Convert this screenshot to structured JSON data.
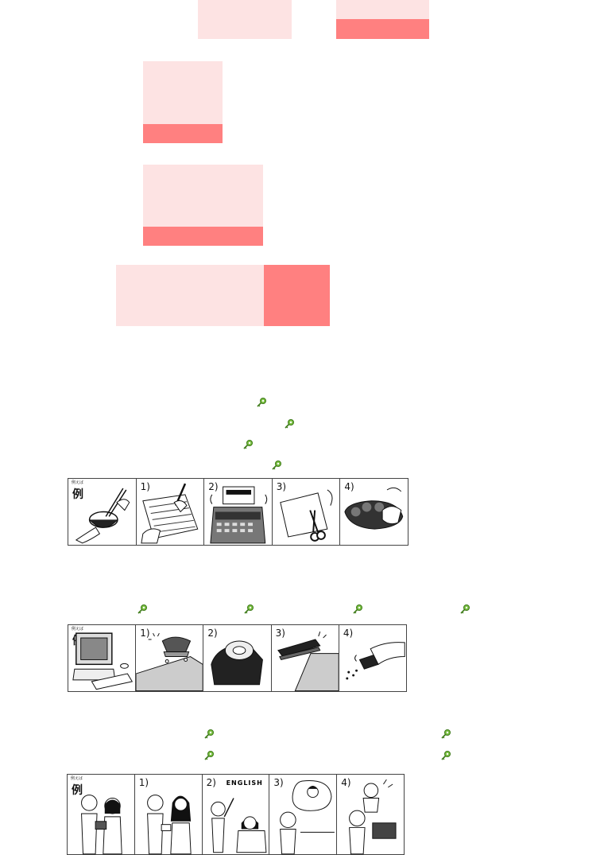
{
  "icons": {
    "listen": "green-key-icon",
    "count": 12
  },
  "colors": {
    "accent_light": "#fde3e3",
    "accent_dark": "#ff8080"
  },
  "strip1": {
    "panels": [
      "例",
      "1)",
      "2)",
      "3)",
      "4)"
    ],
    "tiny": "例えば"
  },
  "strip2": {
    "panels": [
      "例",
      "1)",
      "2)",
      "3)",
      "4)"
    ],
    "tiny": "例えば"
  },
  "strip3": {
    "panels": [
      "例",
      "1)",
      "2)",
      "3)",
      "4)"
    ],
    "tiny": "例えば",
    "board_text": "ENGLISH"
  }
}
